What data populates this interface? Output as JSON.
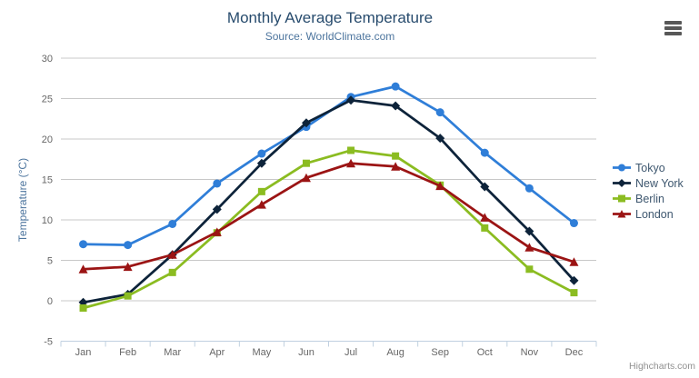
{
  "header": {
    "title": "Monthly Average Temperature",
    "subtitle": "Source: WorldClimate.com"
  },
  "y_axis_title": "Temperature (°C)",
  "credit_label": "Highcharts.com",
  "export_menu": {
    "icon": "hamburger-icon"
  },
  "colors": {
    "title_text": "#274b6d",
    "subtitle_text": "#4d759e",
    "axis_label_text": "#666666",
    "axis_line": "#c0d0e0",
    "grid_line": "#c8c8c8",
    "legend_text": "#3e576f",
    "credit_text": "#909090"
  },
  "chart_data": {
    "type": "line",
    "title": "Monthly Average Temperature",
    "subtitle": "Source: WorldClimate.com",
    "xlabel": "",
    "ylabel": "Temperature (°C)",
    "categories": [
      "Jan",
      "Feb",
      "Mar",
      "Apr",
      "May",
      "Jun",
      "Jul",
      "Aug",
      "Sep",
      "Oct",
      "Nov",
      "Dec"
    ],
    "ylim": [
      -5,
      30
    ],
    "ytick_interval": 5,
    "grid": true,
    "legend_position": "right",
    "series": [
      {
        "name": "Tokyo",
        "color": "#2f7ed8",
        "marker": "circle",
        "values": [
          7.0,
          6.9,
          9.5,
          14.5,
          18.2,
          21.5,
          25.2,
          26.5,
          23.3,
          18.3,
          13.9,
          9.6
        ]
      },
      {
        "name": "New York",
        "color": "#0d233a",
        "marker": "diamond",
        "values": [
          -0.2,
          0.8,
          5.7,
          11.3,
          17.0,
          22.0,
          24.8,
          24.1,
          20.1,
          14.1,
          8.6,
          2.5
        ]
      },
      {
        "name": "Berlin",
        "color": "#8bbc21",
        "marker": "square",
        "values": [
          -0.9,
          0.6,
          3.5,
          8.4,
          13.5,
          17.0,
          18.6,
          17.9,
          14.3,
          9.0,
          3.9,
          1.0
        ]
      },
      {
        "name": "London",
        "color": "#9b1414",
        "marker": "triangle",
        "values": [
          3.9,
          4.2,
          5.7,
          8.5,
          11.9,
          15.2,
          17.0,
          16.6,
          14.2,
          10.3,
          6.6,
          4.8
        ]
      }
    ]
  }
}
